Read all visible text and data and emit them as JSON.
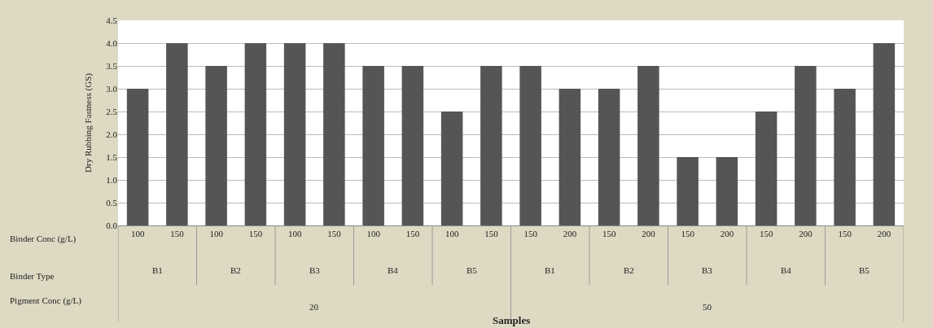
{
  "chart_data": {
    "type": "bar",
    "ylabel": "Dry Rubbing Fastness (GS)",
    "categories": [
      "100",
      "150",
      "100",
      "150",
      "100",
      "150",
      "100",
      "150",
      "100",
      "150",
      "150",
      "200",
      "150",
      "200",
      "150",
      "200",
      "150",
      "200",
      "150",
      "200"
    ],
    "values": [
      3,
      4,
      3.5,
      4,
      4,
      4,
      3.5,
      3.5,
      2.5,
      3.5,
      3.5,
      3,
      3,
      3.5,
      1.5,
      1.5,
      2.5,
      3.5,
      3,
      4
    ],
    "color": "#555555",
    "ylim": [
      0,
      4.5
    ],
    "yticks": [
      {
        "value": 0,
        "label": "0.0"
      },
      0.5,
      {
        "value": 1,
        "label": "1.0"
      },
      1.5,
      {
        "value": 2,
        "label": "2.0"
      },
      2.5,
      {
        "value": 3,
        "label": "3.0"
      },
      3.5,
      {
        "value": 4,
        "label": "4.0"
      },
      4.5
    ],
    "grid": "y",
    "legend": false,
    "annotations": [
      "Binder Conc (g/L)",
      "Binder Type",
      "Pigment Conc (g/L)",
      "B1",
      "B2",
      "B3",
      "B4",
      "B5",
      "B1",
      "B2",
      "B3",
      "B4",
      "B5",
      "20",
      "50",
      "Samples"
    ]
  }
}
